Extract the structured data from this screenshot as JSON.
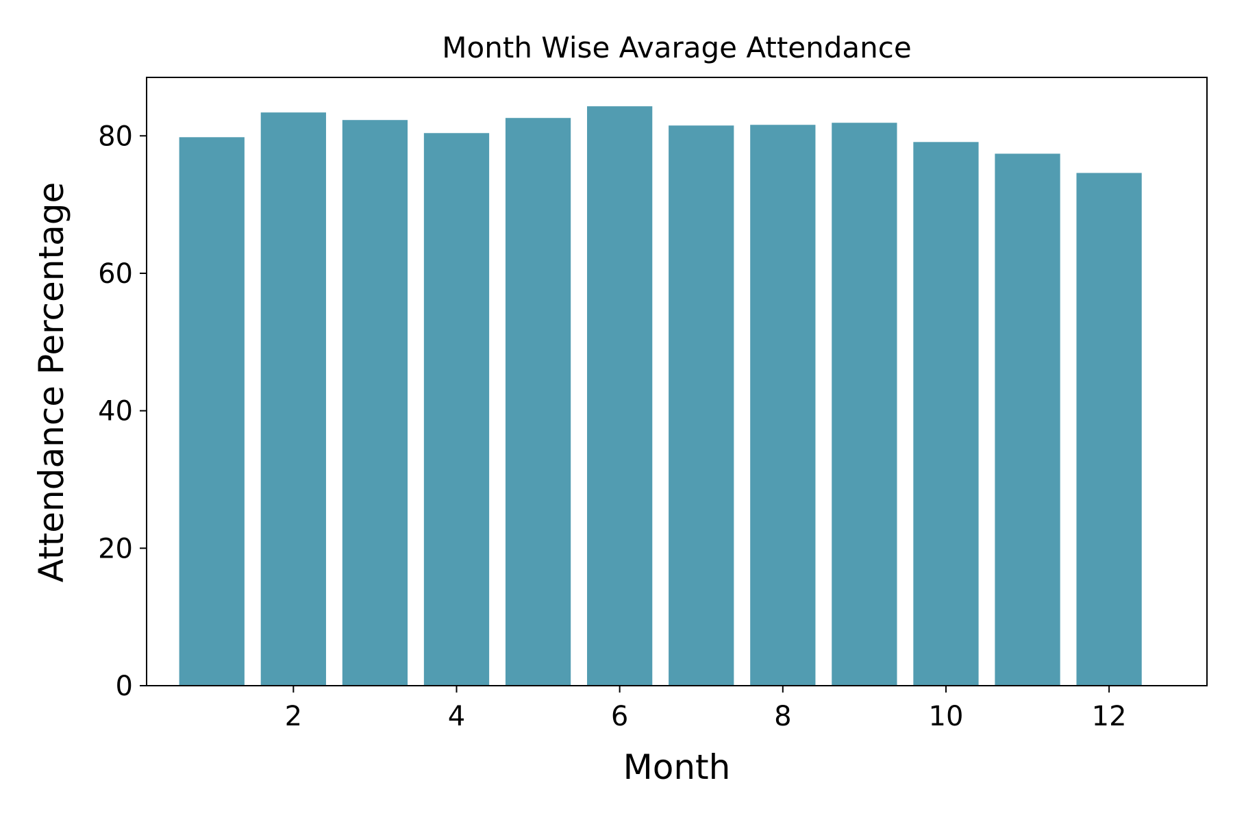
{
  "chart_data": {
    "type": "bar",
    "title": "Month Wise Avarage Attendance",
    "xlabel": "Month",
    "ylabel": "Attendance Percentage",
    "x": [
      1,
      2,
      3,
      4,
      5,
      6,
      7,
      8,
      9,
      10,
      11,
      12
    ],
    "values": [
      79.8,
      83.4,
      82.3,
      80.4,
      82.6,
      84.3,
      81.5,
      81.6,
      81.9,
      79.1,
      77.4,
      74.6
    ],
    "xticks": [
      2,
      4,
      6,
      8,
      10,
      12
    ],
    "yticks": [
      0,
      20,
      40,
      60,
      80
    ],
    "xlim": [
      0.2,
      13.2
    ],
    "ylim": [
      0,
      88.5
    ],
    "bar_color": "#529cb1",
    "grid": false,
    "legend": "none"
  }
}
